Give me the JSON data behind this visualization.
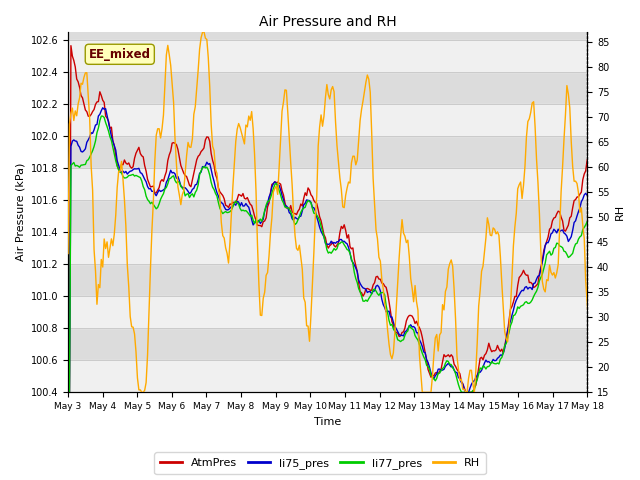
{
  "title": "Air Pressure and RH",
  "xlabel": "Time",
  "ylabel_left": "Air Pressure (kPa)",
  "ylabel_right": "RH",
  "annotation": "EE_mixed",
  "ylim_left": [
    100.4,
    102.65
  ],
  "ylim_right": [
    15,
    87
  ],
  "yticks_left": [
    100.4,
    100.6,
    100.8,
    101.0,
    101.2,
    101.4,
    101.6,
    101.8,
    102.0,
    102.2,
    102.4,
    102.6
  ],
  "yticks_right": [
    15,
    20,
    25,
    30,
    35,
    40,
    45,
    50,
    55,
    60,
    65,
    70,
    75,
    80,
    85
  ],
  "colors": {
    "AtmPres": "#cc0000",
    "li75_pres": "#0000cc",
    "li77_pres": "#00cc00",
    "RH": "#ffaa00"
  },
  "bg_gray": "#dcdcdc",
  "bg_white": "#f0f0f0",
  "annotation_bg": "#ffffbb",
  "annotation_border": "#999900",
  "annotation_text_color": "#660000",
  "xtick_labels": [
    "May 3",
    "May 4",
    "May 5",
    "May 6",
    "May 7",
    "May 8",
    "May 9",
    "May 10",
    "May 11",
    "May 12",
    "May 13",
    "May 14",
    "May 15",
    "May 16",
    "May 17",
    "May 18"
  ]
}
